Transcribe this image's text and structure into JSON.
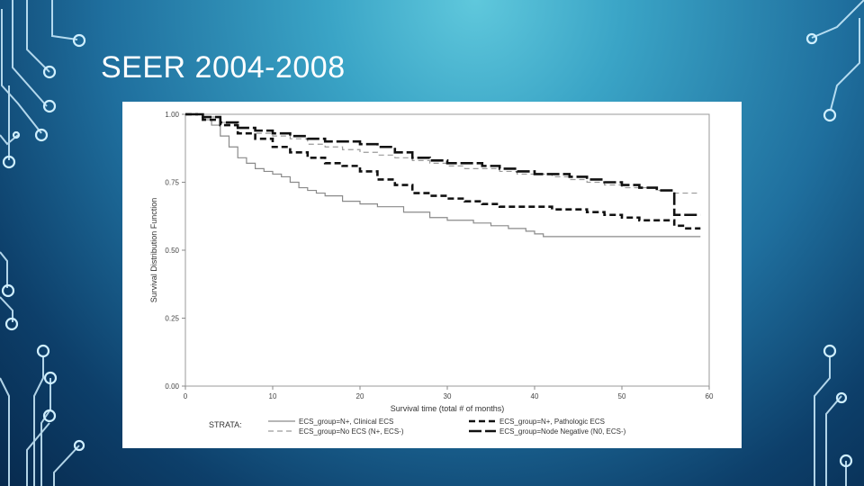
{
  "slide": {
    "title": "SEER 2004-2008"
  },
  "theme": {
    "background_top": "#5fc8dc",
    "background_bottom": "#072a4e",
    "circuit_color": "#cfefff"
  },
  "chart_data": {
    "type": "line",
    "title": "",
    "xlabel": "Survival time (total # of months)",
    "ylabel": "Survival Distribution Function",
    "xlim": [
      0,
      60
    ],
    "ylim": [
      0,
      1
    ],
    "x_ticks": [
      0,
      10,
      20,
      30,
      40,
      50,
      60
    ],
    "y_ticks": [
      0.0,
      0.25,
      0.5,
      0.75,
      1.0
    ],
    "y_tick_labels": [
      "0.00",
      "0.25",
      "0.50",
      "0.75",
      "1.00"
    ],
    "legend_title": "STRATA:",
    "grid": false,
    "series": [
      {
        "name": "ECS_group=N+, Clinical ECS",
        "style": "solid-thin",
        "color": "#8a8a8a",
        "x": [
          0,
          2,
          3,
          4,
          5,
          6,
          7,
          8,
          9,
          10,
          11,
          12,
          13,
          14,
          15,
          16,
          18,
          20,
          22,
          25,
          28,
          30,
          33,
          35,
          37,
          39,
          40,
          41,
          45,
          50,
          55,
          59
        ],
        "y": [
          1.0,
          0.98,
          0.96,
          0.92,
          0.88,
          0.84,
          0.82,
          0.8,
          0.79,
          0.78,
          0.77,
          0.75,
          0.73,
          0.72,
          0.71,
          0.7,
          0.68,
          0.67,
          0.66,
          0.64,
          0.62,
          0.61,
          0.6,
          0.59,
          0.58,
          0.57,
          0.56,
          0.55,
          0.55,
          0.55,
          0.55,
          0.55
        ]
      },
      {
        "name": "ECS_group=No ECS (N+, ECS-)",
        "style": "dashed-thin",
        "color": "#9a9a9a",
        "x": [
          0,
          2,
          4,
          6,
          8,
          10,
          12,
          14,
          16,
          18,
          20,
          22,
          24,
          26,
          28,
          30,
          32,
          34,
          36,
          38,
          40,
          42,
          44,
          46,
          48,
          50,
          52,
          54,
          56,
          59
        ],
        "y": [
          1.0,
          0.99,
          0.97,
          0.95,
          0.93,
          0.92,
          0.91,
          0.89,
          0.88,
          0.87,
          0.86,
          0.85,
          0.84,
          0.83,
          0.82,
          0.81,
          0.8,
          0.8,
          0.79,
          0.78,
          0.78,
          0.77,
          0.76,
          0.75,
          0.74,
          0.73,
          0.73,
          0.72,
          0.71,
          0.71
        ]
      },
      {
        "name": "ECS_group=N+, Pathologic ECS",
        "style": "dashed-thick",
        "color": "#111111",
        "x": [
          0,
          2,
          4,
          6,
          8,
          10,
          12,
          14,
          16,
          18,
          20,
          22,
          24,
          26,
          28,
          30,
          32,
          34,
          36,
          38,
          40,
          42,
          44,
          46,
          48,
          50,
          52,
          54,
          56,
          57,
          59
        ],
        "y": [
          1.0,
          0.98,
          0.96,
          0.93,
          0.91,
          0.88,
          0.86,
          0.84,
          0.82,
          0.81,
          0.79,
          0.76,
          0.74,
          0.71,
          0.7,
          0.69,
          0.68,
          0.67,
          0.66,
          0.66,
          0.66,
          0.65,
          0.65,
          0.64,
          0.63,
          0.62,
          0.61,
          0.61,
          0.59,
          0.58,
          0.58
        ]
      },
      {
        "name": "ECS_group=Node Negative (N0, ECS-)",
        "style": "longdash-thick",
        "color": "#111111",
        "x": [
          0,
          2,
          4,
          6,
          8,
          10,
          12,
          14,
          16,
          18,
          20,
          22,
          24,
          26,
          28,
          30,
          32,
          34,
          36,
          38,
          40,
          42,
          44,
          46,
          48,
          50,
          52,
          54,
          55,
          56,
          59
        ],
        "y": [
          1.0,
          0.99,
          0.97,
          0.95,
          0.94,
          0.93,
          0.92,
          0.91,
          0.9,
          0.9,
          0.89,
          0.88,
          0.86,
          0.84,
          0.83,
          0.82,
          0.82,
          0.81,
          0.8,
          0.79,
          0.78,
          0.78,
          0.77,
          0.76,
          0.75,
          0.74,
          0.73,
          0.72,
          0.72,
          0.63,
          0.63
        ]
      }
    ]
  }
}
